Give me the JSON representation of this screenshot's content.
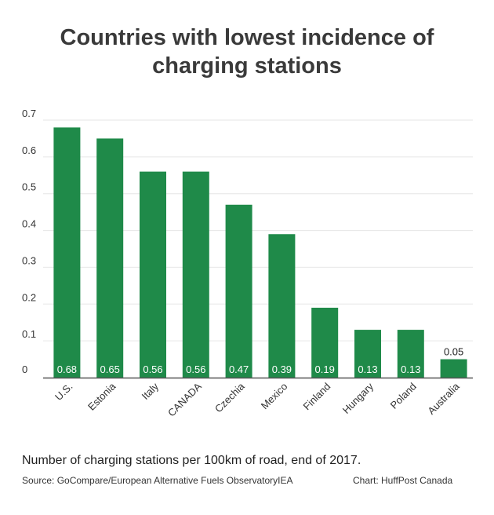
{
  "title_line1": "Countries with lowest incidence of",
  "title_line2": "charging stations",
  "note": "Number of charging stations per 100km of road, end of 2017.",
  "source": "Source: GoCompare/European Alternative Fuels ObservatoryIEA",
  "credit": "Chart: HuffPost Canada",
  "colors": {
    "bar": "#1f8a49",
    "grid": "#e6e6e6",
    "axis": "#555555"
  },
  "chart_data": {
    "type": "bar",
    "categories": [
      "U.S.",
      "Estonia",
      "Italy",
      "CANADA",
      "Czechia",
      "Mexico",
      "Finland",
      "Hungary",
      "Poland",
      "Australia"
    ],
    "values": [
      0.68,
      0.65,
      0.56,
      0.56,
      0.47,
      0.39,
      0.19,
      0.13,
      0.13,
      0.05
    ],
    "data_labels": [
      "0.68",
      "0.65",
      "0.56",
      "0.56",
      "0.47",
      "0.39",
      "0.19",
      "0.13",
      "0.13",
      "0.05"
    ],
    "yticks": [
      "0",
      "0.1",
      "0.2",
      "0.3",
      "0.4",
      "0.5",
      "0.6",
      "0.7"
    ],
    "ylim": [
      0,
      0.7
    ],
    "grid": true
  }
}
